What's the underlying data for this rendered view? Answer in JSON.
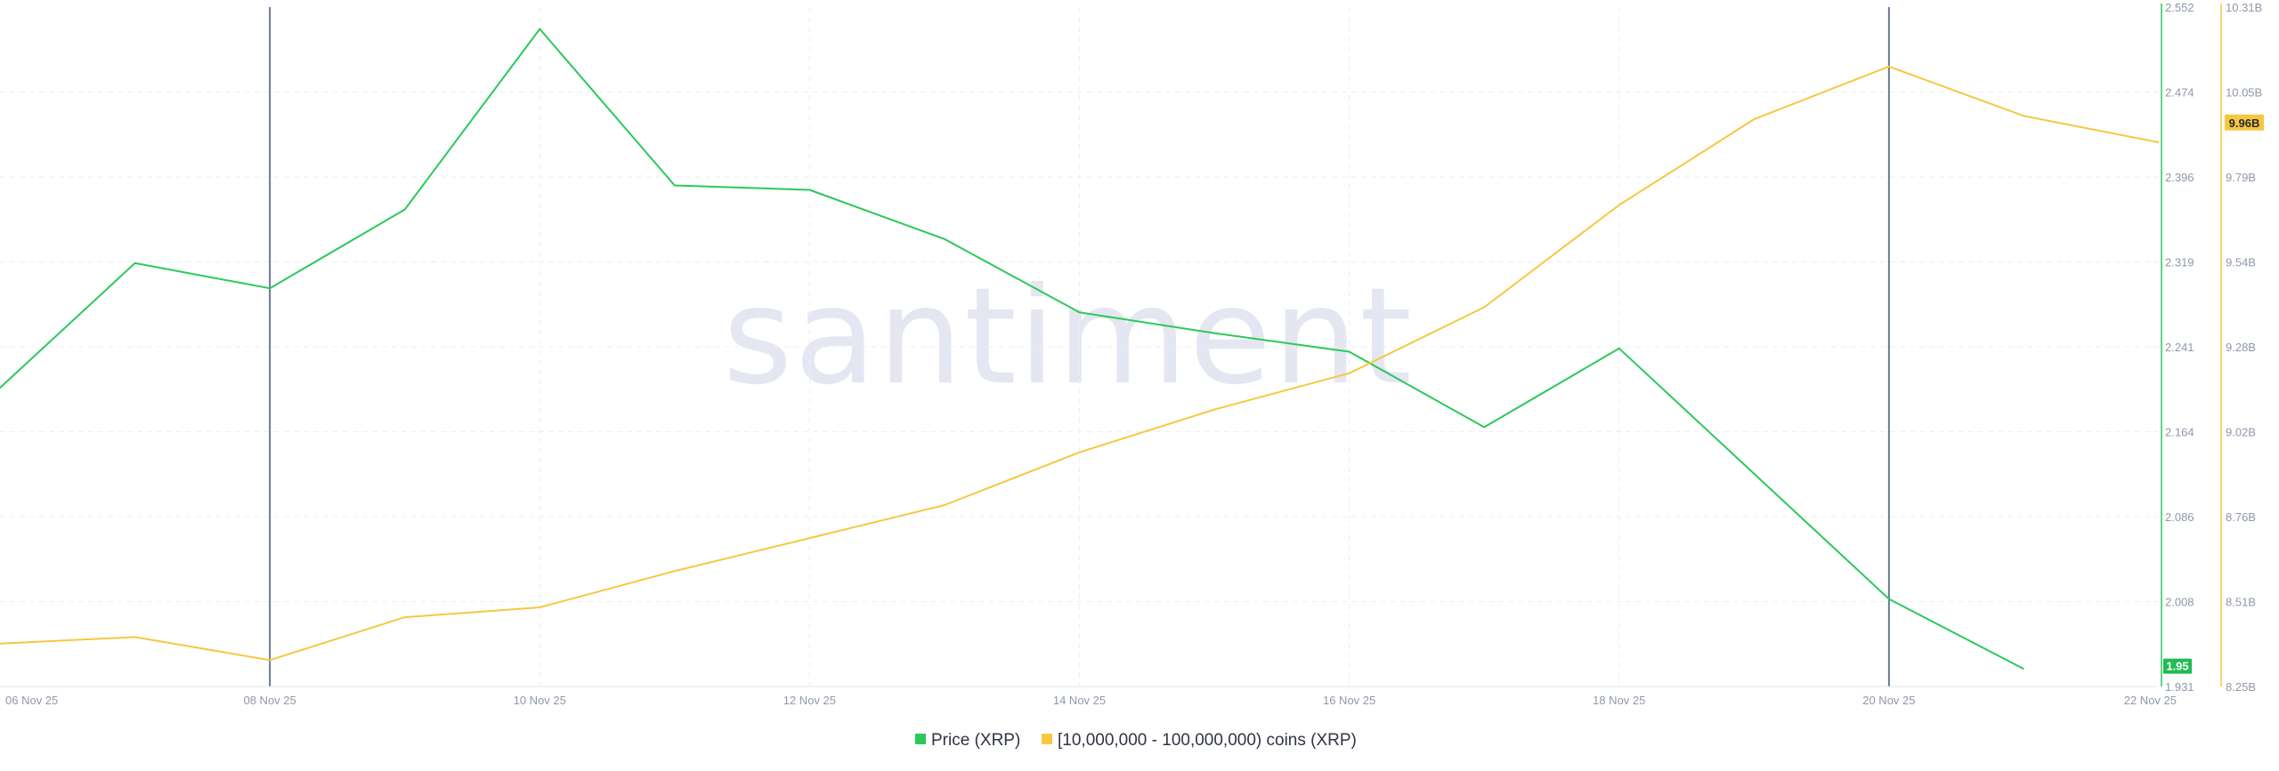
{
  "watermark": "santiment",
  "colors": {
    "price": "#2bc95b",
    "holdings": "#f5c842",
    "marker": "#6b7796",
    "grid": "#eceff4",
    "axis_text": "#8f98a8",
    "price_badge_bg": "#22bb55",
    "holdings_badge_bg": "#f5c842"
  },
  "legend": {
    "price_label": "Price (XRP)",
    "holdings_label": "[10,000,000 - 100,000,000) coins (XRP)"
  },
  "badges": {
    "price": "1.95",
    "holdings": "9.96B"
  },
  "chart_data": {
    "type": "line",
    "x_labels": [
      "06 Nov 25",
      "08 Nov 25",
      "10 Nov 25",
      "12 Nov 25",
      "14 Nov 25",
      "16 Nov 25",
      "18 Nov 25",
      "20 Nov 25",
      "22 Nov 25"
    ],
    "x": [
      "06 Nov 25",
      "07 Nov 25",
      "08 Nov 25",
      "09 Nov 25",
      "10 Nov 25",
      "11 Nov 25",
      "12 Nov 25",
      "13 Nov 25",
      "14 Nov 25",
      "15 Nov 25",
      "16 Nov 25",
      "17 Nov 25",
      "18 Nov 25",
      "19 Nov 25",
      "20 Nov 25",
      "21 Nov 25",
      "22 Nov 25"
    ],
    "series": [
      {
        "name": "Price (XRP)",
        "axis": "left",
        "color": "#2bc95b",
        "values": [
          2.204,
          2.318,
          2.295,
          2.367,
          2.532,
          2.389,
          2.385,
          2.34,
          2.273,
          null,
          2.237,
          2.168,
          2.24,
          null,
          2.011,
          1.947,
          null
        ],
        "extra_points": [
          {
            "x": "15 Nov 25",
            "value": 2.254
          }
        ]
      },
      {
        "name": "[10,000,000 - 100,000,000) coins (XRP)",
        "axis": "right",
        "color": "#f5c842",
        "values": [
          8.38,
          8.4,
          8.33,
          8.46,
          8.49,
          8.6,
          8.7,
          8.8,
          8.96,
          9.09,
          9.2,
          9.4,
          9.71,
          9.97,
          10.13,
          9.98,
          9.9
        ]
      }
    ],
    "left_axis": {
      "ticks": [
        "2.552",
        "2.474",
        "2.396",
        "2.319",
        "2.241",
        "2.164",
        "2.086",
        "2.008",
        "1.931"
      ],
      "ylim": [
        1.931,
        2.552
      ]
    },
    "right_axis": {
      "ticks": [
        "10.31B",
        "10.05B",
        "9.79B",
        "9.54B",
        "9.28B",
        "9.02B",
        "8.76B",
        "8.51B",
        "8.25B"
      ],
      "ylim": [
        8.25,
        10.31
      ]
    },
    "markers": [
      "08 Nov 25",
      "20 Nov 25"
    ],
    "grid": true,
    "legend_position": "bottom-center"
  }
}
